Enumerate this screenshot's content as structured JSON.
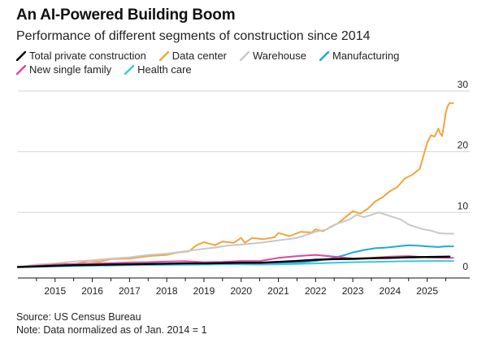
{
  "title": "An AI-Powered Building Boom",
  "subtitle": "Performance of different segments of construction since 2014",
  "source": "Source: US Census Bureau",
  "note": "Note: Data normalized as of Jan. 2014 = 1",
  "chart_data": {
    "type": "line",
    "ylim": [
      0,
      30
    ],
    "yticks": [
      0,
      10,
      20,
      30
    ],
    "xlim": [
      2014.0,
      2025.75
    ],
    "xticks": [
      "2015",
      "2016",
      "2017",
      "2018",
      "2019",
      "2020",
      "2021",
      "2022",
      "2023",
      "2024",
      "2025"
    ],
    "grid": true,
    "legend_position": "top-left",
    "series": [
      {
        "name": "Total private construction",
        "color": "#000000",
        "points": [
          [
            2014.0,
            1.0
          ],
          [
            2014.5,
            1.1
          ],
          [
            2015.0,
            1.2
          ],
          [
            2015.5,
            1.3
          ],
          [
            2016.0,
            1.35
          ],
          [
            2016.5,
            1.4
          ],
          [
            2017.0,
            1.45
          ],
          [
            2017.5,
            1.5
          ],
          [
            2018.0,
            1.55
          ],
          [
            2018.5,
            1.6
          ],
          [
            2019.0,
            1.6
          ],
          [
            2019.5,
            1.65
          ],
          [
            2020.0,
            1.7
          ],
          [
            2020.5,
            1.7
          ],
          [
            2021.0,
            1.85
          ],
          [
            2021.5,
            2.0
          ],
          [
            2022.0,
            2.2
          ],
          [
            2022.5,
            2.3
          ],
          [
            2023.0,
            2.35
          ],
          [
            2023.5,
            2.45
          ],
          [
            2024.0,
            2.5
          ],
          [
            2024.5,
            2.6
          ],
          [
            2025.0,
            2.65
          ],
          [
            2025.5,
            2.7
          ],
          [
            2025.6,
            2.72
          ]
        ]
      },
      {
        "name": "Data center",
        "color": "#f2a53c",
        "points": [
          [
            2014.0,
            1.0
          ],
          [
            2014.5,
            1.3
          ],
          [
            2014.9,
            1.1
          ],
          [
            2015.2,
            1.6
          ],
          [
            2015.5,
            1.4
          ],
          [
            2015.9,
            2.0
          ],
          [
            2016.2,
            1.9
          ],
          [
            2016.5,
            2.3
          ],
          [
            2017.0,
            2.4
          ],
          [
            2017.5,
            2.8
          ],
          [
            2018.0,
            3.0
          ],
          [
            2018.3,
            3.4
          ],
          [
            2018.6,
            3.6
          ],
          [
            2018.8,
            4.6
          ],
          [
            2019.0,
            5.1
          ],
          [
            2019.3,
            4.6
          ],
          [
            2019.5,
            5.2
          ],
          [
            2019.8,
            5.0
          ],
          [
            2020.0,
            5.8
          ],
          [
            2020.1,
            5.0
          ],
          [
            2020.3,
            5.8
          ],
          [
            2020.6,
            5.6
          ],
          [
            2020.9,
            5.9
          ],
          [
            2021.0,
            6.6
          ],
          [
            2021.3,
            6.1
          ],
          [
            2021.6,
            6.8
          ],
          [
            2021.9,
            6.7
          ],
          [
            2022.0,
            7.2
          ],
          [
            2022.2,
            6.9
          ],
          [
            2022.4,
            7.6
          ],
          [
            2022.6,
            8.2
          ],
          [
            2022.8,
            9.2
          ],
          [
            2023.0,
            10.2
          ],
          [
            2023.2,
            9.8
          ],
          [
            2023.4,
            10.6
          ],
          [
            2023.6,
            11.8
          ],
          [
            2023.8,
            12.5
          ],
          [
            2024.0,
            13.5
          ],
          [
            2024.2,
            14.2
          ],
          [
            2024.4,
            15.6
          ],
          [
            2024.6,
            16.2
          ],
          [
            2024.8,
            17.2
          ],
          [
            2025.0,
            21.5
          ],
          [
            2025.1,
            22.7
          ],
          [
            2025.2,
            22.5
          ],
          [
            2025.3,
            23.8
          ],
          [
            2025.35,
            23.0
          ],
          [
            2025.4,
            22.6
          ],
          [
            2025.45,
            24.4
          ],
          [
            2025.5,
            26.5
          ],
          [
            2025.55,
            27.5
          ],
          [
            2025.6,
            28.0
          ],
          [
            2025.7,
            28.0
          ]
        ]
      },
      {
        "name": "Warehouse",
        "color": "#c8c8c8",
        "points": [
          [
            2014.0,
            1.0
          ],
          [
            2014.5,
            1.4
          ],
          [
            2015.0,
            1.6
          ],
          [
            2015.5,
            1.9
          ],
          [
            2016.0,
            2.1
          ],
          [
            2016.5,
            2.4
          ],
          [
            2017.0,
            2.6
          ],
          [
            2017.5,
            3.0
          ],
          [
            2018.0,
            3.2
          ],
          [
            2018.5,
            3.6
          ],
          [
            2019.0,
            4.0
          ],
          [
            2019.3,
            4.2
          ],
          [
            2019.6,
            4.5
          ],
          [
            2020.0,
            4.7
          ],
          [
            2020.5,
            5.0
          ],
          [
            2021.0,
            5.4
          ],
          [
            2021.5,
            5.8
          ],
          [
            2022.0,
            6.8
          ],
          [
            2022.3,
            7.2
          ],
          [
            2022.6,
            8.2
          ],
          [
            2022.9,
            8.8
          ],
          [
            2023.1,
            9.6
          ],
          [
            2023.3,
            9.2
          ],
          [
            2023.5,
            9.6
          ],
          [
            2023.7,
            10.0
          ],
          [
            2023.9,
            9.6
          ],
          [
            2024.1,
            9.2
          ],
          [
            2024.3,
            8.8
          ],
          [
            2024.5,
            8.0
          ],
          [
            2024.7,
            7.6
          ],
          [
            2024.9,
            7.2
          ],
          [
            2025.1,
            7.0
          ],
          [
            2025.3,
            6.6
          ],
          [
            2025.5,
            6.5
          ],
          [
            2025.7,
            6.5
          ]
        ]
      },
      {
        "name": "Manufacturing",
        "color": "#1fa7de",
        "points": [
          [
            2014.0,
            1.0
          ],
          [
            2014.5,
            1.1
          ],
          [
            2015.0,
            1.2
          ],
          [
            2015.5,
            1.3
          ],
          [
            2016.0,
            1.3
          ],
          [
            2016.5,
            1.35
          ],
          [
            2017.0,
            1.4
          ],
          [
            2017.5,
            1.45
          ],
          [
            2018.0,
            1.5
          ],
          [
            2018.5,
            1.5
          ],
          [
            2019.0,
            1.55
          ],
          [
            2019.5,
            1.6
          ],
          [
            2020.0,
            1.6
          ],
          [
            2020.5,
            1.5
          ],
          [
            2021.0,
            1.6
          ],
          [
            2021.5,
            1.7
          ],
          [
            2022.0,
            2.0
          ],
          [
            2022.5,
            2.5
          ],
          [
            2022.8,
            3.0
          ],
          [
            2023.0,
            3.4
          ],
          [
            2023.3,
            3.8
          ],
          [
            2023.6,
            4.1
          ],
          [
            2023.9,
            4.2
          ],
          [
            2024.2,
            4.4
          ],
          [
            2024.5,
            4.6
          ],
          [
            2024.8,
            4.5
          ],
          [
            2025.0,
            4.4
          ],
          [
            2025.3,
            4.3
          ],
          [
            2025.5,
            4.4
          ],
          [
            2025.7,
            4.4
          ]
        ]
      },
      {
        "name": "New single family",
        "color": "#e0479b",
        "points": [
          [
            2014.0,
            1.0
          ],
          [
            2014.5,
            1.2
          ],
          [
            2015.0,
            1.4
          ],
          [
            2015.5,
            1.5
          ],
          [
            2016.0,
            1.6
          ],
          [
            2016.5,
            1.65
          ],
          [
            2017.0,
            1.75
          ],
          [
            2017.5,
            1.8
          ],
          [
            2018.0,
            1.9
          ],
          [
            2018.5,
            1.95
          ],
          [
            2019.0,
            1.8
          ],
          [
            2019.5,
            1.85
          ],
          [
            2020.0,
            2.0
          ],
          [
            2020.5,
            2.0
          ],
          [
            2021.0,
            2.5
          ],
          [
            2021.5,
            2.8
          ],
          [
            2022.0,
            3.0
          ],
          [
            2022.5,
            2.7
          ],
          [
            2023.0,
            2.4
          ],
          [
            2023.5,
            2.5
          ],
          [
            2024.0,
            2.7
          ],
          [
            2024.5,
            2.8
          ],
          [
            2025.0,
            2.6
          ],
          [
            2025.5,
            2.5
          ],
          [
            2025.7,
            2.5
          ]
        ]
      },
      {
        "name": "Health care",
        "color": "#37c9e0",
        "points": [
          [
            2014.0,
            1.0
          ],
          [
            2014.5,
            1.05
          ],
          [
            2015.0,
            1.1
          ],
          [
            2015.5,
            1.15
          ],
          [
            2016.0,
            1.2
          ],
          [
            2016.5,
            1.25
          ],
          [
            2017.0,
            1.3
          ],
          [
            2017.5,
            1.32
          ],
          [
            2018.0,
            1.35
          ],
          [
            2018.5,
            1.38
          ],
          [
            2019.0,
            1.4
          ],
          [
            2019.5,
            1.45
          ],
          [
            2020.0,
            1.45
          ],
          [
            2020.5,
            1.4
          ],
          [
            2021.0,
            1.45
          ],
          [
            2021.5,
            1.5
          ],
          [
            2022.0,
            1.6
          ],
          [
            2022.5,
            1.7
          ],
          [
            2023.0,
            1.8
          ],
          [
            2023.5,
            1.85
          ],
          [
            2024.0,
            1.9
          ],
          [
            2024.5,
            1.95
          ],
          [
            2025.0,
            2.0
          ],
          [
            2025.5,
            2.0
          ],
          [
            2025.7,
            2.0
          ]
        ]
      }
    ]
  }
}
